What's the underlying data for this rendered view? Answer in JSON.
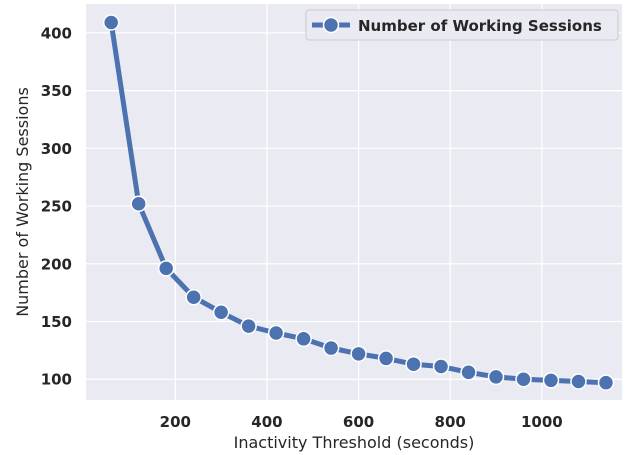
{
  "chart_data": {
    "type": "line",
    "title": "",
    "xlabel": "Inactivity Threshold (seconds)",
    "ylabel": "Number of Working Sessions",
    "xlim": [
      5,
      1175
    ],
    "ylim": [
      82,
      425
    ],
    "xticks": [
      200,
      400,
      600,
      800,
      1000
    ],
    "yticks": [
      100,
      150,
      200,
      250,
      300,
      350,
      400
    ],
    "grid": true,
    "legend_position": "top-right",
    "series": [
      {
        "name": "Number of Working Sessions",
        "color": "#4c72b0",
        "marker": "circle",
        "x": [
          60,
          120,
          180,
          240,
          300,
          360,
          420,
          480,
          540,
          600,
          660,
          720,
          780,
          840,
          900,
          960,
          1020,
          1080,
          1140
        ],
        "y": [
          409,
          252,
          196,
          171,
          158,
          146,
          140,
          135,
          127,
          122,
          118,
          113,
          111,
          106,
          102,
          100,
          99,
          98,
          97
        ]
      }
    ]
  }
}
